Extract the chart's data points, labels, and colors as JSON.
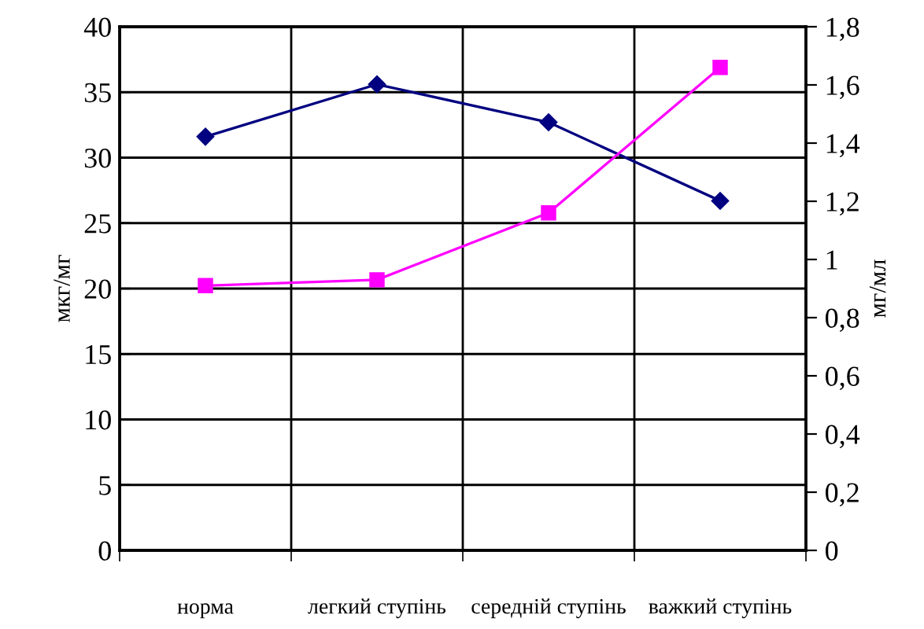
{
  "chart_data": {
    "type": "line",
    "categories": [
      "норма",
      "легкий ступінь",
      "середній ступінь",
      "важкий ступінь"
    ],
    "ylabel": "мкг/мг",
    "y2label": "мг/мл",
    "ylim": [
      0,
      40
    ],
    "yticks": [
      0,
      5,
      10,
      15,
      20,
      25,
      30,
      35,
      40
    ],
    "y2lim": [
      0,
      1.8
    ],
    "y2ticks": [
      {
        "value": 0,
        "label": "0"
      },
      {
        "value": 0.2,
        "label": "0,2"
      },
      {
        "value": 0.4,
        "label": "0,4"
      },
      {
        "value": 0.6,
        "label": "0,6"
      },
      {
        "value": 0.8,
        "label": "0,8"
      },
      {
        "value": 1,
        "label": "1"
      },
      {
        "value": 1.2,
        "label": "1,2"
      },
      {
        "value": 1.4,
        "label": "1,4"
      },
      {
        "value": 1.6,
        "label": "1,6"
      },
      {
        "value": 1.8,
        "label": "1,8"
      }
    ],
    "grid": true,
    "series": [
      {
        "color": "#000080",
        "marker": "diamond",
        "values": [
          31.6,
          35.6,
          32.7,
          26.7
        ]
      },
      {
        "color": "#ff00ff",
        "marker": "square",
        "axis": "y2",
        "values": [
          0.91,
          0.93,
          1.16,
          1.66
        ]
      }
    ]
  }
}
